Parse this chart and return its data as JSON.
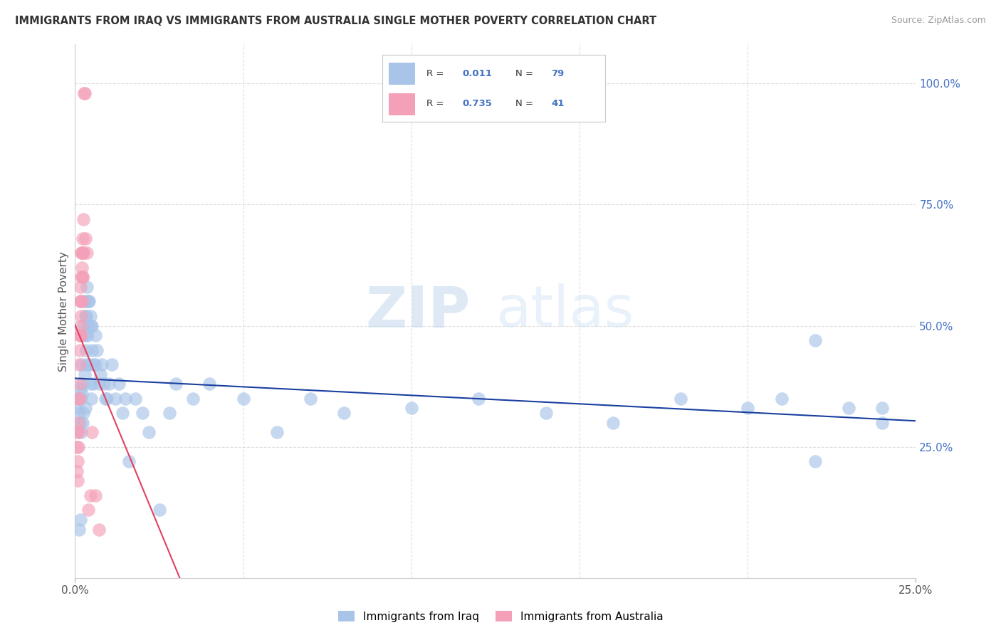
{
  "title": "IMMIGRANTS FROM IRAQ VS IMMIGRANTS FROM AUSTRALIA SINGLE MOTHER POVERTY CORRELATION CHART",
  "source": "Source: ZipAtlas.com",
  "ylabel": "Single Mother Poverty",
  "right_yticks": [
    "100.0%",
    "75.0%",
    "50.0%",
    "25.0%"
  ],
  "right_ytick_vals": [
    1.0,
    0.75,
    0.5,
    0.25
  ],
  "xlim": [
    0.0,
    0.25
  ],
  "ylim": [
    -0.02,
    1.08
  ],
  "legend_iraq_R": "0.011",
  "legend_iraq_N": "79",
  "legend_aus_R": "0.735",
  "legend_aus_N": "41",
  "iraq_color": "#a8c4e8",
  "aus_color": "#f4a0b8",
  "iraq_line_color": "#1a3fa0",
  "aus_line_color": "#e04060",
  "watermark_zip": "ZIP",
  "watermark_atlas": "atlas",
  "iraq_x": [
    0.0008,
    0.001,
    0.0012,
    0.0015,
    0.0015,
    0.0018,
    0.0018,
    0.002,
    0.002,
    0.0022,
    0.0022,
    0.0025,
    0.0025,
    0.0025,
    0.0028,
    0.0028,
    0.003,
    0.003,
    0.003,
    0.0032,
    0.0032,
    0.0035,
    0.0035,
    0.0038,
    0.0038,
    0.004,
    0.004,
    0.0042,
    0.0042,
    0.0045,
    0.0045,
    0.0048,
    0.0048,
    0.005,
    0.005,
    0.0055,
    0.0055,
    0.006,
    0.006,
    0.0065,
    0.007,
    0.0075,
    0.008,
    0.0085,
    0.009,
    0.0095,
    0.01,
    0.011,
    0.012,
    0.013,
    0.014,
    0.015,
    0.016,
    0.018,
    0.02,
    0.022,
    0.025,
    0.028,
    0.03,
    0.035,
    0.04,
    0.05,
    0.06,
    0.07,
    0.08,
    0.1,
    0.12,
    0.14,
    0.16,
    0.18,
    0.2,
    0.21,
    0.22,
    0.23,
    0.24,
    0.24,
    0.0015,
    0.22,
    0.0012
  ],
  "iraq_y": [
    0.33,
    0.35,
    0.32,
    0.37,
    0.3,
    0.35,
    0.28,
    0.42,
    0.36,
    0.38,
    0.3,
    0.5,
    0.48,
    0.32,
    0.55,
    0.4,
    0.52,
    0.48,
    0.33,
    0.52,
    0.45,
    0.58,
    0.42,
    0.55,
    0.48,
    0.55,
    0.5,
    0.55,
    0.42,
    0.52,
    0.38,
    0.5,
    0.35,
    0.5,
    0.45,
    0.42,
    0.38,
    0.48,
    0.42,
    0.45,
    0.38,
    0.4,
    0.42,
    0.38,
    0.35,
    0.35,
    0.38,
    0.42,
    0.35,
    0.38,
    0.32,
    0.35,
    0.22,
    0.35,
    0.32,
    0.28,
    0.12,
    0.32,
    0.38,
    0.35,
    0.38,
    0.35,
    0.28,
    0.35,
    0.32,
    0.33,
    0.35,
    0.32,
    0.3,
    0.35,
    0.33,
    0.35,
    0.22,
    0.33,
    0.33,
    0.3,
    0.1,
    0.47,
    0.08
  ],
  "aus_x": [
    0.0005,
    0.0006,
    0.0007,
    0.0008,
    0.0008,
    0.0009,
    0.001,
    0.001,
    0.0011,
    0.0012,
    0.0012,
    0.0013,
    0.0013,
    0.0014,
    0.0015,
    0.0015,
    0.0016,
    0.0016,
    0.0017,
    0.0017,
    0.0018,
    0.0018,
    0.0019,
    0.002,
    0.002,
    0.0021,
    0.0022,
    0.0022,
    0.0023,
    0.0023,
    0.0024,
    0.0025,
    0.0026,
    0.0028,
    0.003,
    0.0035,
    0.004,
    0.0045,
    0.005,
    0.006,
    0.007
  ],
  "aus_y": [
    0.2,
    0.25,
    0.18,
    0.28,
    0.22,
    0.28,
    0.3,
    0.25,
    0.35,
    0.42,
    0.35,
    0.45,
    0.38,
    0.48,
    0.55,
    0.48,
    0.55,
    0.5,
    0.58,
    0.48,
    0.6,
    0.52,
    0.65,
    0.62,
    0.55,
    0.65,
    0.65,
    0.6,
    0.68,
    0.6,
    0.72,
    0.65,
    0.98,
    0.98,
    0.68,
    0.65,
    0.12,
    0.15,
    0.28,
    0.15,
    0.08
  ]
}
